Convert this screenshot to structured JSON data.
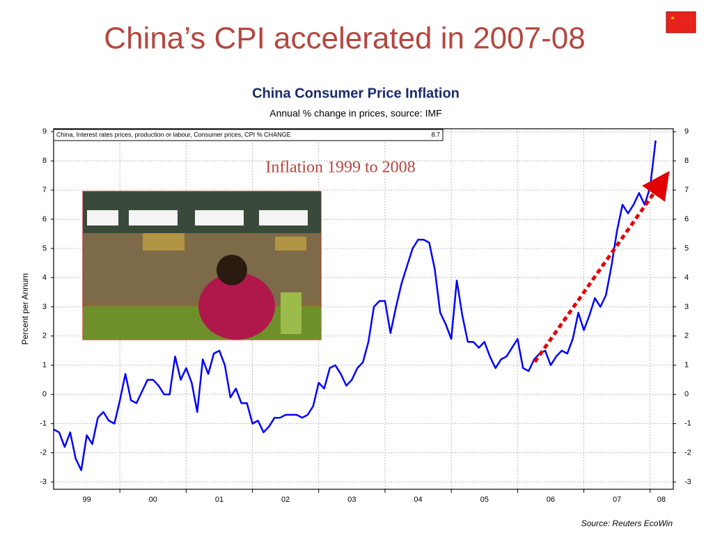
{
  "slide_title": "China’s CPI accelerated in 2007-08",
  "chart_data": {
    "type": "line",
    "title": "China Consumer Price Inflation",
    "subtitle": "Annual % change in prices, source: IMF",
    "annotation": "Inflation 1999 to 2008",
    "ylabel": "Percent per Annum",
    "source": "Source: Reuters EcoWin",
    "legend_value": 8.7,
    "grid": true,
    "xlim": [
      1999,
      2008.35
    ],
    "ylim": [
      -3.25,
      9.1
    ],
    "yticks": [
      -3,
      -2,
      -1,
      0,
      1,
      2,
      3,
      4,
      5,
      6,
      7,
      8,
      9
    ],
    "xticks": [
      {
        "value": 1999.5,
        "label": "99"
      },
      {
        "value": 2000.5,
        "label": "00"
      },
      {
        "value": 2001.5,
        "label": "01"
      },
      {
        "value": 2002.5,
        "label": "02"
      },
      {
        "value": 2003.5,
        "label": "03"
      },
      {
        "value": 2004.5,
        "label": "04"
      },
      {
        "value": 2005.5,
        "label": "05"
      },
      {
        "value": 2006.5,
        "label": "06"
      },
      {
        "value": 2007.5,
        "label": "07"
      },
      {
        "value": 2008.17,
        "label": "08"
      }
    ],
    "x": [
      1999,
      1999.083,
      1999.167,
      1999.25,
      1999.333,
      1999.417,
      1999.5,
      1999.583,
      1999.667,
      1999.75,
      1999.833,
      1999.917,
      2000,
      2000.083,
      2000.167,
      2000.25,
      2000.333,
      2000.417,
      2000.5,
      2000.583,
      2000.667,
      2000.75,
      2000.833,
      2000.917,
      2001,
      2001.083,
      2001.167,
      2001.25,
      2001.333,
      2001.417,
      2001.5,
      2001.583,
      2001.667,
      2001.75,
      2001.833,
      2001.917,
      2002,
      2002.083,
      2002.167,
      2002.25,
      2002.333,
      2002.417,
      2002.5,
      2002.583,
      2002.667,
      2002.75,
      2002.833,
      2002.917,
      2003,
      2003.083,
      2003.167,
      2003.25,
      2003.333,
      2003.417,
      2003.5,
      2003.583,
      2003.667,
      2003.75,
      2003.833,
      2003.917,
      2004,
      2004.083,
      2004.167,
      2004.25,
      2004.333,
      2004.417,
      2004.5,
      2004.583,
      2004.667,
      2004.75,
      2004.833,
      2004.917,
      2005,
      2005.083,
      2005.167,
      2005.25,
      2005.333,
      2005.417,
      2005.5,
      2005.583,
      2005.667,
      2005.75,
      2005.833,
      2005.917,
      2006,
      2006.083,
      2006.167,
      2006.25,
      2006.333,
      2006.417,
      2006.5,
      2006.583,
      2006.667,
      2006.75,
      2006.833,
      2006.917,
      2007,
      2007.083,
      2007.167,
      2007.25,
      2007.333,
      2007.417,
      2007.5,
      2007.583,
      2007.667,
      2007.75,
      2007.833,
      2007.917,
      2008,
      2008.083
    ],
    "series": [
      {
        "name": "China, Interest rates prices, production or labour, Consumer prices, CPI % CHANGE",
        "color": "#0000ff",
        "values": [
          -1.2,
          -1.3,
          -1.8,
          -1.3,
          -2.2,
          -2.6,
          -1.4,
          -1.7,
          -0.8,
          -0.6,
          -0.9,
          -1.0,
          -0.2,
          0.7,
          -0.2,
          -0.3,
          0.1,
          0.5,
          0.5,
          0.3,
          0.0,
          0.0,
          1.3,
          0.5,
          0.9,
          0.4,
          -0.6,
          1.2,
          0.7,
          1.4,
          1.5,
          1.0,
          -0.1,
          0.2,
          -0.3,
          -0.3,
          -1.0,
          -0.9,
          -1.3,
          -1.1,
          -0.8,
          -0.8,
          -0.7,
          -0.7,
          -0.7,
          -0.8,
          -0.7,
          -0.4,
          0.4,
          0.2,
          0.9,
          1.0,
          0.7,
          0.3,
          0.5,
          0.9,
          1.1,
          1.8,
          3.0,
          3.2,
          3.2,
          2.1,
          3.0,
          3.8,
          4.4,
          5.0,
          5.3,
          5.3,
          5.2,
          4.3,
          2.8,
          2.4,
          1.9,
          3.9,
          2.7,
          1.8,
          1.8,
          1.6,
          1.8,
          1.3,
          0.9,
          1.2,
          1.3,
          1.6,
          1.9,
          0.9,
          0.8,
          1.2,
          1.4,
          1.5,
          1.0,
          1.3,
          1.5,
          1.4,
          1.9,
          2.8,
          2.2,
          2.7,
          3.3,
          3.0,
          3.4,
          4.4,
          5.6,
          6.5,
          6.2,
          6.5,
          6.9,
          6.5,
          7.1,
          8.7
        ]
      }
    ]
  }
}
